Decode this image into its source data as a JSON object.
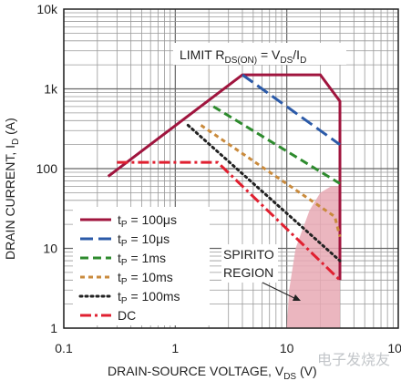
{
  "chart_data": {
    "type": "line",
    "x_scale": "log",
    "y_scale": "log",
    "xlim": [
      0.1,
      100
    ],
    "ylim": [
      1,
      10000
    ],
    "grid": true,
    "xticks": [
      "0.1",
      "1",
      "10",
      "100"
    ],
    "yticks": [
      "1",
      "10",
      "100",
      "1k",
      "10k"
    ],
    "xlabel": {
      "main": "DRAIN-SOURCE VOLTAGE, V",
      "sub": "DS",
      "unit": " (V)"
    },
    "ylabel": {
      "main": "DRAIN CURRENT, I",
      "sub": "D",
      "unit": " (A)"
    },
    "limit_annotation": {
      "prefix": "LIMIT R",
      "sub1": "DS(ON)",
      "mid": " = V",
      "sub2": "DS",
      "slash": "/I",
      "sub3": "D"
    },
    "region_label": [
      "SPIRITO",
      "REGION"
    ],
    "watermark": "电子发烧友",
    "legend_placement": "bottom-left",
    "series": [
      {
        "name_prefix": "t",
        "name_sub": "P",
        "name_suffix": " = 100μs",
        "color": "#a0153e",
        "dash": "solid",
        "x": [
          0.25,
          4,
          20,
          30,
          30,
          30
        ],
        "y": [
          80,
          1500,
          1500,
          700,
          50,
          4
        ]
      },
      {
        "name_prefix": "t",
        "name_sub": "P",
        "name_suffix": " = 10μs",
        "color": "#2b5aa8",
        "dash": "long-dash",
        "x": [
          4,
          30
        ],
        "y": [
          1500,
          200
        ]
      },
      {
        "name_prefix": "t",
        "name_sub": "P",
        "name_suffix": " = 1ms",
        "color": "#2e8b2e",
        "dash": "dash",
        "x": [
          2.2,
          30
        ],
        "y": [
          600,
          65
        ]
      },
      {
        "name_prefix": "t",
        "name_sub": "P",
        "name_suffix": " = 10ms",
        "color": "#c98a3c",
        "dash": "short-dash",
        "x": [
          1.7,
          27,
          30
        ],
        "y": [
          350,
          25,
          14
        ]
      },
      {
        "name_prefix": "t",
        "name_sub": "P",
        "name_suffix": " = 100ms",
        "color": "#222222",
        "dash": "dot",
        "x": [
          1.3,
          30
        ],
        "y": [
          350,
          7
        ]
      },
      {
        "name": "DC",
        "color": "#e02030",
        "dash": "dash-dot",
        "x": [
          0.3,
          2.4,
          30
        ],
        "y": [
          120,
          120,
          4
        ]
      }
    ],
    "shaded_region": {
      "color": "#e8a9b4",
      "x": [
        10,
        10.5,
        12,
        16,
        20,
        25,
        30,
        30
      ],
      "y": [
        1,
        3,
        10,
        30,
        50,
        60,
        60,
        1
      ]
    }
  }
}
